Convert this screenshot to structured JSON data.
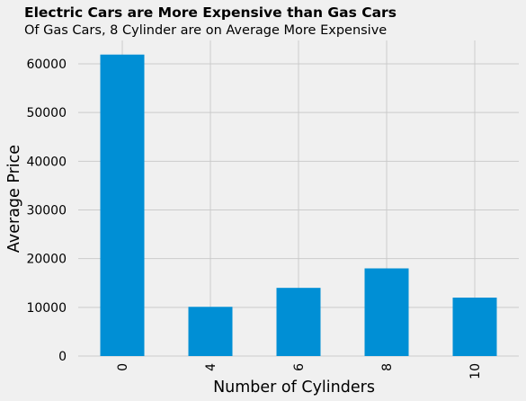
{
  "chart_data": {
    "type": "bar",
    "title": "Electric Cars are More Expensive than Gas Cars",
    "subtitle": "Of Gas Cars, 8 Cylinder are on Average More Expensive",
    "xlabel": "Number of Cylinders",
    "ylabel": "Average Price",
    "categories": [
      "0",
      "4",
      "6",
      "8",
      "10"
    ],
    "values": [
      61900,
      10100,
      14000,
      18000,
      12000
    ],
    "ylim": [
      0,
      64800
    ],
    "yticks": [
      0,
      10000,
      20000,
      30000,
      40000,
      50000,
      60000
    ],
    "ytick_labels": [
      "0",
      "10000",
      "20000",
      "30000",
      "40000",
      "50000",
      "60000"
    ],
    "grid": true,
    "legend": "none",
    "colors": {
      "bar": "#008fd5",
      "background": "#f0f0f0",
      "grid": "#cbcbcb",
      "text": "#000000"
    }
  }
}
